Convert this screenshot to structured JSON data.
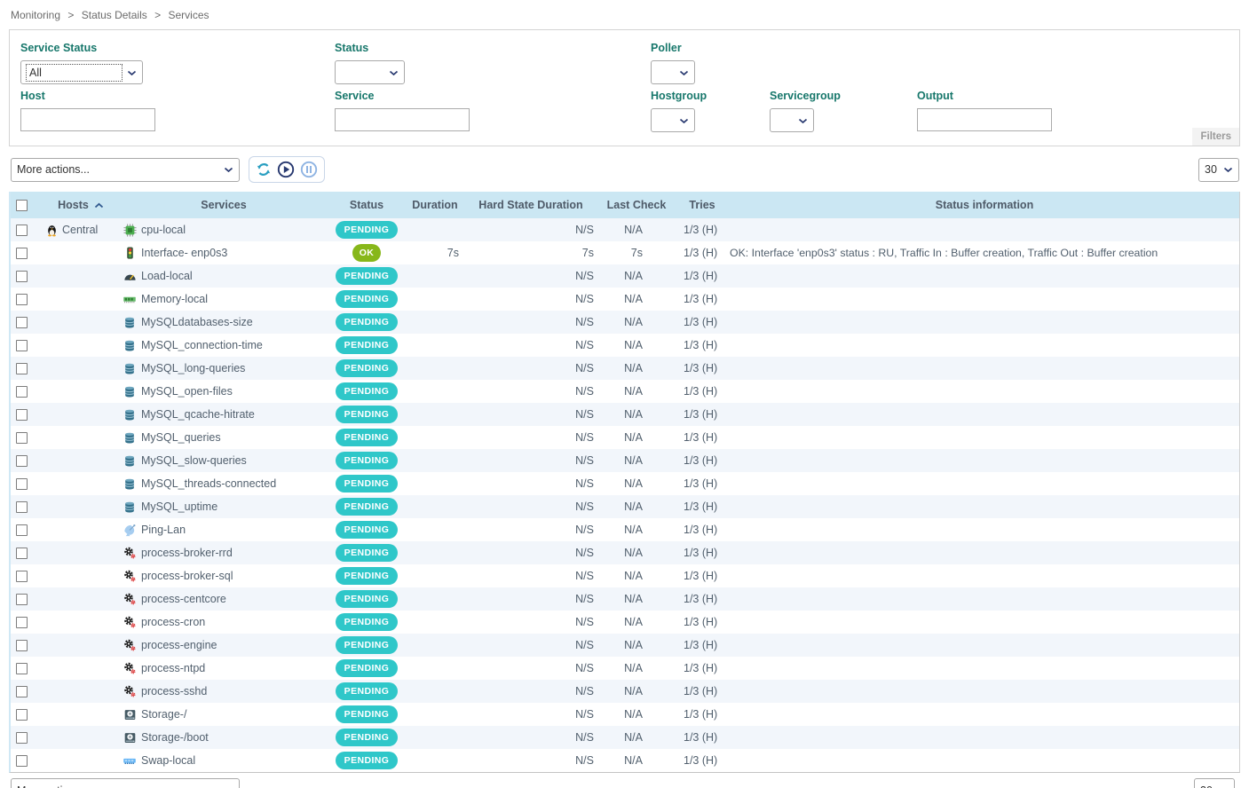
{
  "breadcrumb": {
    "items": [
      "Monitoring",
      "Status Details",
      "Services"
    ],
    "separator": ">"
  },
  "filters": {
    "panel_tab": "Filters",
    "fields": {
      "service_status": {
        "label": "Service Status",
        "value": "All"
      },
      "status": {
        "label": "Status",
        "value": ""
      },
      "poller": {
        "label": "Poller",
        "value": ""
      },
      "host": {
        "label": "Host",
        "value": ""
      },
      "service": {
        "label": "Service",
        "value": ""
      },
      "hostgroup": {
        "label": "Hostgroup",
        "value": ""
      },
      "servicegroup": {
        "label": "Servicegroup",
        "value": ""
      },
      "output": {
        "label": "Output",
        "value": ""
      }
    }
  },
  "toolbar": {
    "more_actions_label": "More actions...",
    "icons": [
      "refresh-icon",
      "play-icon",
      "pause-icon"
    ],
    "page_size": "30"
  },
  "table": {
    "headers": {
      "hosts": "Hosts",
      "services": "Services",
      "status": "Status",
      "duration": "Duration",
      "hard_state_duration": "Hard State Duration",
      "last_check": "Last Check",
      "tries": "Tries",
      "status_information": "Status information"
    },
    "sort": {
      "column": "Hosts",
      "direction": "asc"
    },
    "rows": [
      {
        "host": "Central",
        "host_icon": "tux",
        "icon": "cpu",
        "service": "cpu-local",
        "status": "PENDING",
        "duration": "",
        "hard_state_duration": "N/S",
        "last_check": "N/A",
        "tries": "1/3 (H)",
        "info": ""
      },
      {
        "host": "",
        "host_icon": "",
        "icon": "traffic",
        "service": "Interface- enp0s3",
        "status": "OK",
        "duration": "7s",
        "hard_state_duration": "7s",
        "last_check": "7s",
        "tries": "1/3 (H)",
        "info": "OK: Interface 'enp0s3' status : RU, Traffic In : Buffer creation, Traffic Out : Buffer creation"
      },
      {
        "host": "",
        "host_icon": "",
        "icon": "gauge",
        "service": "Load-local",
        "status": "PENDING",
        "duration": "",
        "hard_state_duration": "N/S",
        "last_check": "N/A",
        "tries": "1/3 (H)",
        "info": ""
      },
      {
        "host": "",
        "host_icon": "",
        "icon": "memory",
        "service": "Memory-local",
        "status": "PENDING",
        "duration": "",
        "hard_state_duration": "N/S",
        "last_check": "N/A",
        "tries": "1/3 (H)",
        "info": ""
      },
      {
        "host": "",
        "host_icon": "",
        "icon": "database",
        "service": "MySQLdatabases-size",
        "status": "PENDING",
        "duration": "",
        "hard_state_duration": "N/S",
        "last_check": "N/A",
        "tries": "1/3 (H)",
        "info": ""
      },
      {
        "host": "",
        "host_icon": "",
        "icon": "database",
        "service": "MySQL_connection-time",
        "status": "PENDING",
        "duration": "",
        "hard_state_duration": "N/S",
        "last_check": "N/A",
        "tries": "1/3 (H)",
        "info": ""
      },
      {
        "host": "",
        "host_icon": "",
        "icon": "database",
        "service": "MySQL_long-queries",
        "status": "PENDING",
        "duration": "",
        "hard_state_duration": "N/S",
        "last_check": "N/A",
        "tries": "1/3 (H)",
        "info": ""
      },
      {
        "host": "",
        "host_icon": "",
        "icon": "database",
        "service": "MySQL_open-files",
        "status": "PENDING",
        "duration": "",
        "hard_state_duration": "N/S",
        "last_check": "N/A",
        "tries": "1/3 (H)",
        "info": ""
      },
      {
        "host": "",
        "host_icon": "",
        "icon": "database",
        "service": "MySQL_qcache-hitrate",
        "status": "PENDING",
        "duration": "",
        "hard_state_duration": "N/S",
        "last_check": "N/A",
        "tries": "1/3 (H)",
        "info": ""
      },
      {
        "host": "",
        "host_icon": "",
        "icon": "database",
        "service": "MySQL_queries",
        "status": "PENDING",
        "duration": "",
        "hard_state_duration": "N/S",
        "last_check": "N/A",
        "tries": "1/3 (H)",
        "info": ""
      },
      {
        "host": "",
        "host_icon": "",
        "icon": "database",
        "service": "MySQL_slow-queries",
        "status": "PENDING",
        "duration": "",
        "hard_state_duration": "N/S",
        "last_check": "N/A",
        "tries": "1/3 (H)",
        "info": ""
      },
      {
        "host": "",
        "host_icon": "",
        "icon": "database",
        "service": "MySQL_threads-connected",
        "status": "PENDING",
        "duration": "",
        "hard_state_duration": "N/S",
        "last_check": "N/A",
        "tries": "1/3 (H)",
        "info": ""
      },
      {
        "host": "",
        "host_icon": "",
        "icon": "database",
        "service": "MySQL_uptime",
        "status": "PENDING",
        "duration": "",
        "hard_state_duration": "N/S",
        "last_check": "N/A",
        "tries": "1/3 (H)",
        "info": ""
      },
      {
        "host": "",
        "host_icon": "",
        "icon": "satellite",
        "service": "Ping-Lan",
        "status": "PENDING",
        "duration": "",
        "hard_state_duration": "N/S",
        "last_check": "N/A",
        "tries": "1/3 (H)",
        "info": ""
      },
      {
        "host": "",
        "host_icon": "",
        "icon": "gears",
        "service": "process-broker-rrd",
        "status": "PENDING",
        "duration": "",
        "hard_state_duration": "N/S",
        "last_check": "N/A",
        "tries": "1/3 (H)",
        "info": ""
      },
      {
        "host": "",
        "host_icon": "",
        "icon": "gears",
        "service": "process-broker-sql",
        "status": "PENDING",
        "duration": "",
        "hard_state_duration": "N/S",
        "last_check": "N/A",
        "tries": "1/3 (H)",
        "info": ""
      },
      {
        "host": "",
        "host_icon": "",
        "icon": "gears",
        "service": "process-centcore",
        "status": "PENDING",
        "duration": "",
        "hard_state_duration": "N/S",
        "last_check": "N/A",
        "tries": "1/3 (H)",
        "info": ""
      },
      {
        "host": "",
        "host_icon": "",
        "icon": "gears",
        "service": "process-cron",
        "status": "PENDING",
        "duration": "",
        "hard_state_duration": "N/S",
        "last_check": "N/A",
        "tries": "1/3 (H)",
        "info": ""
      },
      {
        "host": "",
        "host_icon": "",
        "icon": "gears",
        "service": "process-engine",
        "status": "PENDING",
        "duration": "",
        "hard_state_duration": "N/S",
        "last_check": "N/A",
        "tries": "1/3 (H)",
        "info": ""
      },
      {
        "host": "",
        "host_icon": "",
        "icon": "gears",
        "service": "process-ntpd",
        "status": "PENDING",
        "duration": "",
        "hard_state_duration": "N/S",
        "last_check": "N/A",
        "tries": "1/3 (H)",
        "info": ""
      },
      {
        "host": "",
        "host_icon": "",
        "icon": "gears",
        "service": "process-sshd",
        "status": "PENDING",
        "duration": "",
        "hard_state_duration": "N/S",
        "last_check": "N/A",
        "tries": "1/3 (H)",
        "info": ""
      },
      {
        "host": "",
        "host_icon": "",
        "icon": "disk",
        "service": "Storage-/",
        "status": "PENDING",
        "duration": "",
        "hard_state_duration": "N/S",
        "last_check": "N/A",
        "tries": "1/3 (H)",
        "info": ""
      },
      {
        "host": "",
        "host_icon": "",
        "icon": "disk",
        "service": "Storage-/boot",
        "status": "PENDING",
        "duration": "",
        "hard_state_duration": "N/S",
        "last_check": "N/A",
        "tries": "1/3 (H)",
        "info": ""
      },
      {
        "host": "",
        "host_icon": "",
        "icon": "swap",
        "service": "Swap-local",
        "status": "PENDING",
        "duration": "",
        "hard_state_duration": "N/S",
        "last_check": "N/A",
        "tries": "1/3 (H)",
        "info": ""
      }
    ]
  },
  "colors": {
    "accent_teal": "#17776b",
    "header_bg": "#cbe7f3",
    "status": {
      "PENDING": "#2fc7c9",
      "OK": "#87b71a"
    }
  }
}
